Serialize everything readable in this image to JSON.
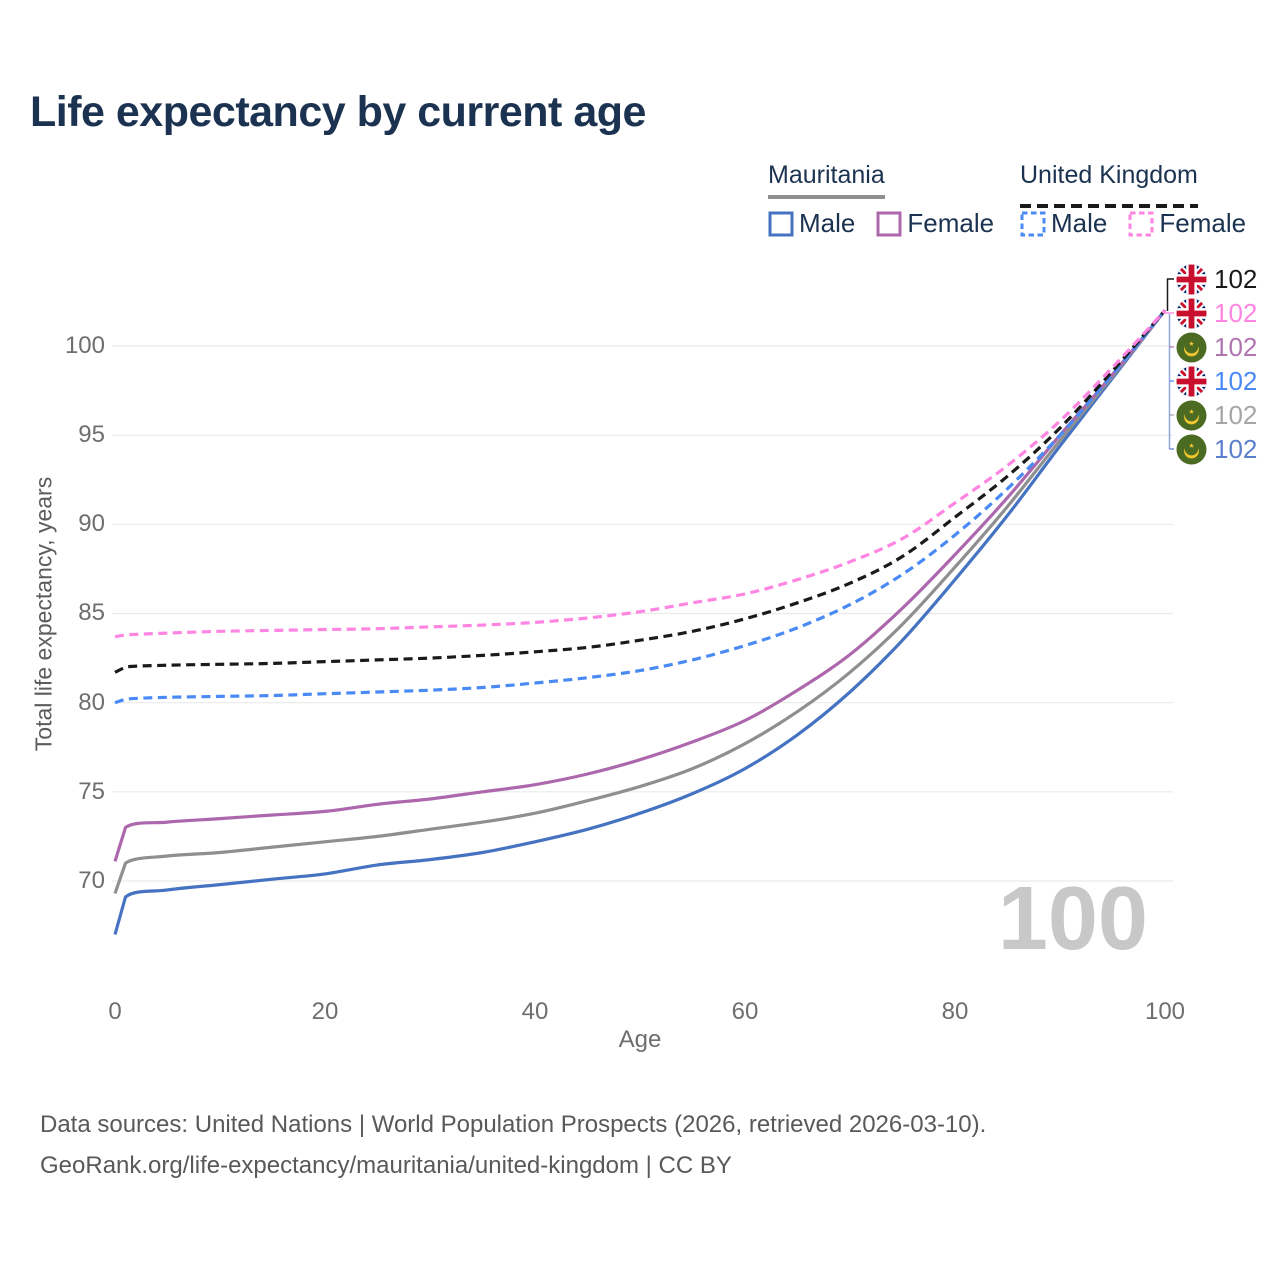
{
  "title": "Life expectancy by current age",
  "legend": {
    "groups": [
      {
        "id": "mauritania",
        "label": "Mauritania",
        "line": {
          "style": "solid",
          "color": "#8f8f8f"
        },
        "items": [
          {
            "series": "mr-male",
            "label": "Male",
            "color": "#4573c2",
            "dashed": false
          },
          {
            "series": "mr-female",
            "label": "Female",
            "color": "#ad68ad",
            "dashed": false
          }
        ]
      },
      {
        "id": "united-kingdom",
        "label": "United Kingdom",
        "line": {
          "style": "dashed",
          "color": "#1a1a1a"
        },
        "items": [
          {
            "series": "uk-male",
            "label": "Male",
            "color": "#4a8af4",
            "dashed": true
          },
          {
            "series": "uk-female",
            "label": "Female",
            "color": "#ff85e2",
            "dashed": true
          }
        ]
      }
    ]
  },
  "chart_data": {
    "type": "line",
    "title": "Life expectancy by current age",
    "xlabel": "Age",
    "ylabel": "Total life expectancy, years",
    "xlim": [
      0,
      100
    ],
    "ylim": [
      66,
      103
    ],
    "x_ticks": [
      0,
      20,
      40,
      60,
      80,
      100
    ],
    "y_ticks": [
      70,
      75,
      80,
      85,
      90,
      95,
      100
    ],
    "grid": "horizontal",
    "legend_position": "top-right",
    "age_watermark": "100",
    "series": [
      {
        "id": "mr-male",
        "name": "Mauritania Male",
        "country": "Mauritania",
        "sex": "male",
        "color": "#4573c2",
        "dashed": false,
        "end_value": 102,
        "points": [
          [
            0,
            67.0
          ],
          [
            1,
            69.1
          ],
          [
            5,
            69.5
          ],
          [
            10,
            69.8
          ],
          [
            15,
            70.1
          ],
          [
            20,
            70.4
          ],
          [
            25,
            70.9
          ],
          [
            30,
            71.2
          ],
          [
            35,
            71.6
          ],
          [
            40,
            72.2
          ],
          [
            45,
            72.9
          ],
          [
            50,
            73.8
          ],
          [
            55,
            74.9
          ],
          [
            60,
            76.3
          ],
          [
            65,
            78.2
          ],
          [
            70,
            80.6
          ],
          [
            75,
            83.5
          ],
          [
            80,
            86.9
          ],
          [
            85,
            90.5
          ],
          [
            90,
            94.4
          ],
          [
            95,
            98.2
          ],
          [
            100,
            102
          ]
        ]
      },
      {
        "id": "mr-all",
        "name": "Mauritania Both sexes",
        "country": "Mauritania",
        "sex": "all",
        "color": "#8f8f8f",
        "dashed": false,
        "end_value": 102,
        "points": [
          [
            0,
            69.3
          ],
          [
            1,
            71.0
          ],
          [
            5,
            71.4
          ],
          [
            10,
            71.6
          ],
          [
            15,
            71.9
          ],
          [
            20,
            72.2
          ],
          [
            25,
            72.5
          ],
          [
            30,
            72.9
          ],
          [
            35,
            73.3
          ],
          [
            40,
            73.8
          ],
          [
            45,
            74.5
          ],
          [
            50,
            75.3
          ],
          [
            55,
            76.3
          ],
          [
            60,
            77.7
          ],
          [
            65,
            79.5
          ],
          [
            70,
            81.7
          ],
          [
            75,
            84.4
          ],
          [
            80,
            87.6
          ],
          [
            85,
            91.0
          ],
          [
            90,
            94.7
          ],
          [
            95,
            98.3
          ],
          [
            100,
            102
          ]
        ]
      },
      {
        "id": "mr-female",
        "name": "Mauritania Female",
        "country": "Mauritania",
        "sex": "female",
        "color": "#ad68ad",
        "dashed": false,
        "end_value": 102,
        "points": [
          [
            0,
            71.1
          ],
          [
            1,
            73.0
          ],
          [
            5,
            73.3
          ],
          [
            10,
            73.5
          ],
          [
            15,
            73.7
          ],
          [
            20,
            73.9
          ],
          [
            25,
            74.3
          ],
          [
            30,
            74.6
          ],
          [
            35,
            75.0
          ],
          [
            40,
            75.4
          ],
          [
            45,
            76.0
          ],
          [
            50,
            76.8
          ],
          [
            55,
            77.8
          ],
          [
            60,
            79.0
          ],
          [
            65,
            80.7
          ],
          [
            70,
            82.7
          ],
          [
            75,
            85.3
          ],
          [
            80,
            88.3
          ],
          [
            85,
            91.5
          ],
          [
            90,
            95.0
          ],
          [
            95,
            98.4
          ],
          [
            100,
            102
          ]
        ]
      },
      {
        "id": "uk-male",
        "name": "United Kingdom Male",
        "country": "United Kingdom",
        "sex": "male",
        "color": "#4a8af4",
        "dashed": true,
        "end_value": 102,
        "points": [
          [
            0,
            80.0
          ],
          [
            1,
            80.2
          ],
          [
            5,
            80.3
          ],
          [
            10,
            80.35
          ],
          [
            15,
            80.4
          ],
          [
            20,
            80.5
          ],
          [
            25,
            80.6
          ],
          [
            30,
            80.7
          ],
          [
            35,
            80.85
          ],
          [
            40,
            81.1
          ],
          [
            45,
            81.4
          ],
          [
            50,
            81.8
          ],
          [
            55,
            82.4
          ],
          [
            60,
            83.2
          ],
          [
            65,
            84.2
          ],
          [
            70,
            85.5
          ],
          [
            75,
            87.2
          ],
          [
            80,
            89.4
          ],
          [
            85,
            92.0
          ],
          [
            90,
            95.0
          ],
          [
            95,
            98.4
          ],
          [
            100,
            102
          ]
        ]
      },
      {
        "id": "uk-all",
        "name": "United Kingdom Both sexes",
        "country": "United Kingdom",
        "sex": "all",
        "color": "#1a1a1a",
        "dashed": true,
        "end_value": 102,
        "points": [
          [
            0,
            81.7
          ],
          [
            1,
            82.0
          ],
          [
            5,
            82.1
          ],
          [
            10,
            82.15
          ],
          [
            15,
            82.2
          ],
          [
            20,
            82.3
          ],
          [
            25,
            82.4
          ],
          [
            30,
            82.5
          ],
          [
            35,
            82.65
          ],
          [
            40,
            82.85
          ],
          [
            45,
            83.1
          ],
          [
            50,
            83.5
          ],
          [
            55,
            84.0
          ],
          [
            60,
            84.7
          ],
          [
            65,
            85.6
          ],
          [
            70,
            86.7
          ],
          [
            75,
            88.2
          ],
          [
            80,
            90.4
          ],
          [
            85,
            92.7
          ],
          [
            90,
            95.4
          ],
          [
            95,
            98.6
          ],
          [
            100,
            102
          ]
        ]
      },
      {
        "id": "uk-female",
        "name": "United Kingdom Female",
        "country": "United Kingdom",
        "sex": "female",
        "color": "#ff85e2",
        "dashed": true,
        "end_value": 102,
        "points": [
          [
            0,
            83.7
          ],
          [
            1,
            83.8
          ],
          [
            5,
            83.9
          ],
          [
            10,
            84.0
          ],
          [
            15,
            84.05
          ],
          [
            20,
            84.1
          ],
          [
            25,
            84.15
          ],
          [
            30,
            84.25
          ],
          [
            35,
            84.35
          ],
          [
            40,
            84.5
          ],
          [
            45,
            84.75
          ],
          [
            50,
            85.1
          ],
          [
            55,
            85.6
          ],
          [
            60,
            86.1
          ],
          [
            65,
            86.9
          ],
          [
            70,
            87.9
          ],
          [
            75,
            89.2
          ],
          [
            80,
            91.2
          ],
          [
            85,
            93.3
          ],
          [
            90,
            95.8
          ],
          [
            95,
            98.8
          ],
          [
            100,
            102
          ]
        ]
      }
    ]
  },
  "end_labels": [
    {
      "series": "uk-all",
      "flag": "uk",
      "text": "102",
      "color": "#1a1a1a"
    },
    {
      "series": "uk-female",
      "flag": "uk",
      "text": "102",
      "color": "#ff85e2"
    },
    {
      "series": "mr-female",
      "flag": "mr",
      "text": "102",
      "color": "#b175b1"
    },
    {
      "series": "uk-male",
      "flag": "uk",
      "text": "102",
      "color": "#4a8af4"
    },
    {
      "series": "mr-all",
      "flag": "mr",
      "text": "102",
      "color": "#a6a6a6"
    },
    {
      "series": "mr-male",
      "flag": "mr",
      "text": "102",
      "color": "#5c80cc"
    }
  ],
  "footer": {
    "line1": "Data sources: United Nations | World Population Prospects (2026, retrieved 2026-03-10).",
    "line2": "GeoRank.org/life-expectancy/mauritania/united-kingdom | CC BY"
  }
}
